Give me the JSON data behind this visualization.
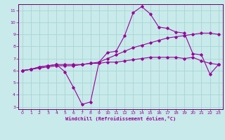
{
  "xlabel": "Windchill (Refroidissement éolien,°C)",
  "bg_color": "#c8eaea",
  "grid_color": "#aad4d4",
  "line_color": "#990099",
  "spine_color": "#660066",
  "xlim": [
    -0.5,
    23.5
  ],
  "ylim": [
    2.8,
    11.5
  ],
  "xticks": [
    0,
    1,
    2,
    3,
    4,
    5,
    6,
    7,
    8,
    9,
    10,
    11,
    12,
    13,
    14,
    15,
    16,
    17,
    18,
    19,
    20,
    21,
    22,
    23
  ],
  "yticks": [
    3,
    4,
    5,
    6,
    7,
    8,
    9,
    10,
    11
  ],
  "line1_x": [
    0,
    1,
    2,
    3,
    4,
    5,
    6,
    7,
    8,
    9,
    10,
    11,
    12,
    13,
    14,
    15,
    16,
    17,
    18,
    19,
    20,
    21,
    22,
    23
  ],
  "line1_y": [
    6.0,
    6.1,
    6.3,
    6.4,
    6.5,
    5.9,
    4.6,
    3.2,
    3.4,
    6.7,
    7.5,
    7.6,
    8.9,
    10.8,
    11.3,
    10.7,
    9.6,
    9.5,
    9.2,
    9.1,
    7.4,
    7.3,
    5.7,
    6.5
  ],
  "line2_x": [
    0,
    1,
    2,
    3,
    4,
    5,
    6,
    7,
    8,
    9,
    10,
    11,
    12,
    13,
    14,
    15,
    16,
    17,
    18,
    19,
    20,
    21,
    22,
    23
  ],
  "line2_y": [
    6.0,
    6.1,
    6.3,
    6.4,
    6.5,
    6.5,
    6.5,
    6.5,
    6.6,
    6.6,
    6.7,
    6.7,
    6.8,
    6.9,
    7.0,
    7.1,
    7.1,
    7.1,
    7.1,
    7.0,
    7.1,
    6.8,
    6.6,
    6.5
  ],
  "line3_x": [
    0,
    1,
    2,
    3,
    4,
    5,
    6,
    7,
    8,
    9,
    10,
    11,
    12,
    13,
    14,
    15,
    16,
    17,
    18,
    19,
    20,
    21,
    22,
    23
  ],
  "line3_y": [
    6.0,
    6.1,
    6.2,
    6.3,
    6.4,
    6.4,
    6.4,
    6.5,
    6.6,
    6.7,
    7.0,
    7.3,
    7.6,
    7.9,
    8.1,
    8.3,
    8.5,
    8.7,
    8.8,
    8.9,
    9.0,
    9.1,
    9.1,
    9.0
  ]
}
